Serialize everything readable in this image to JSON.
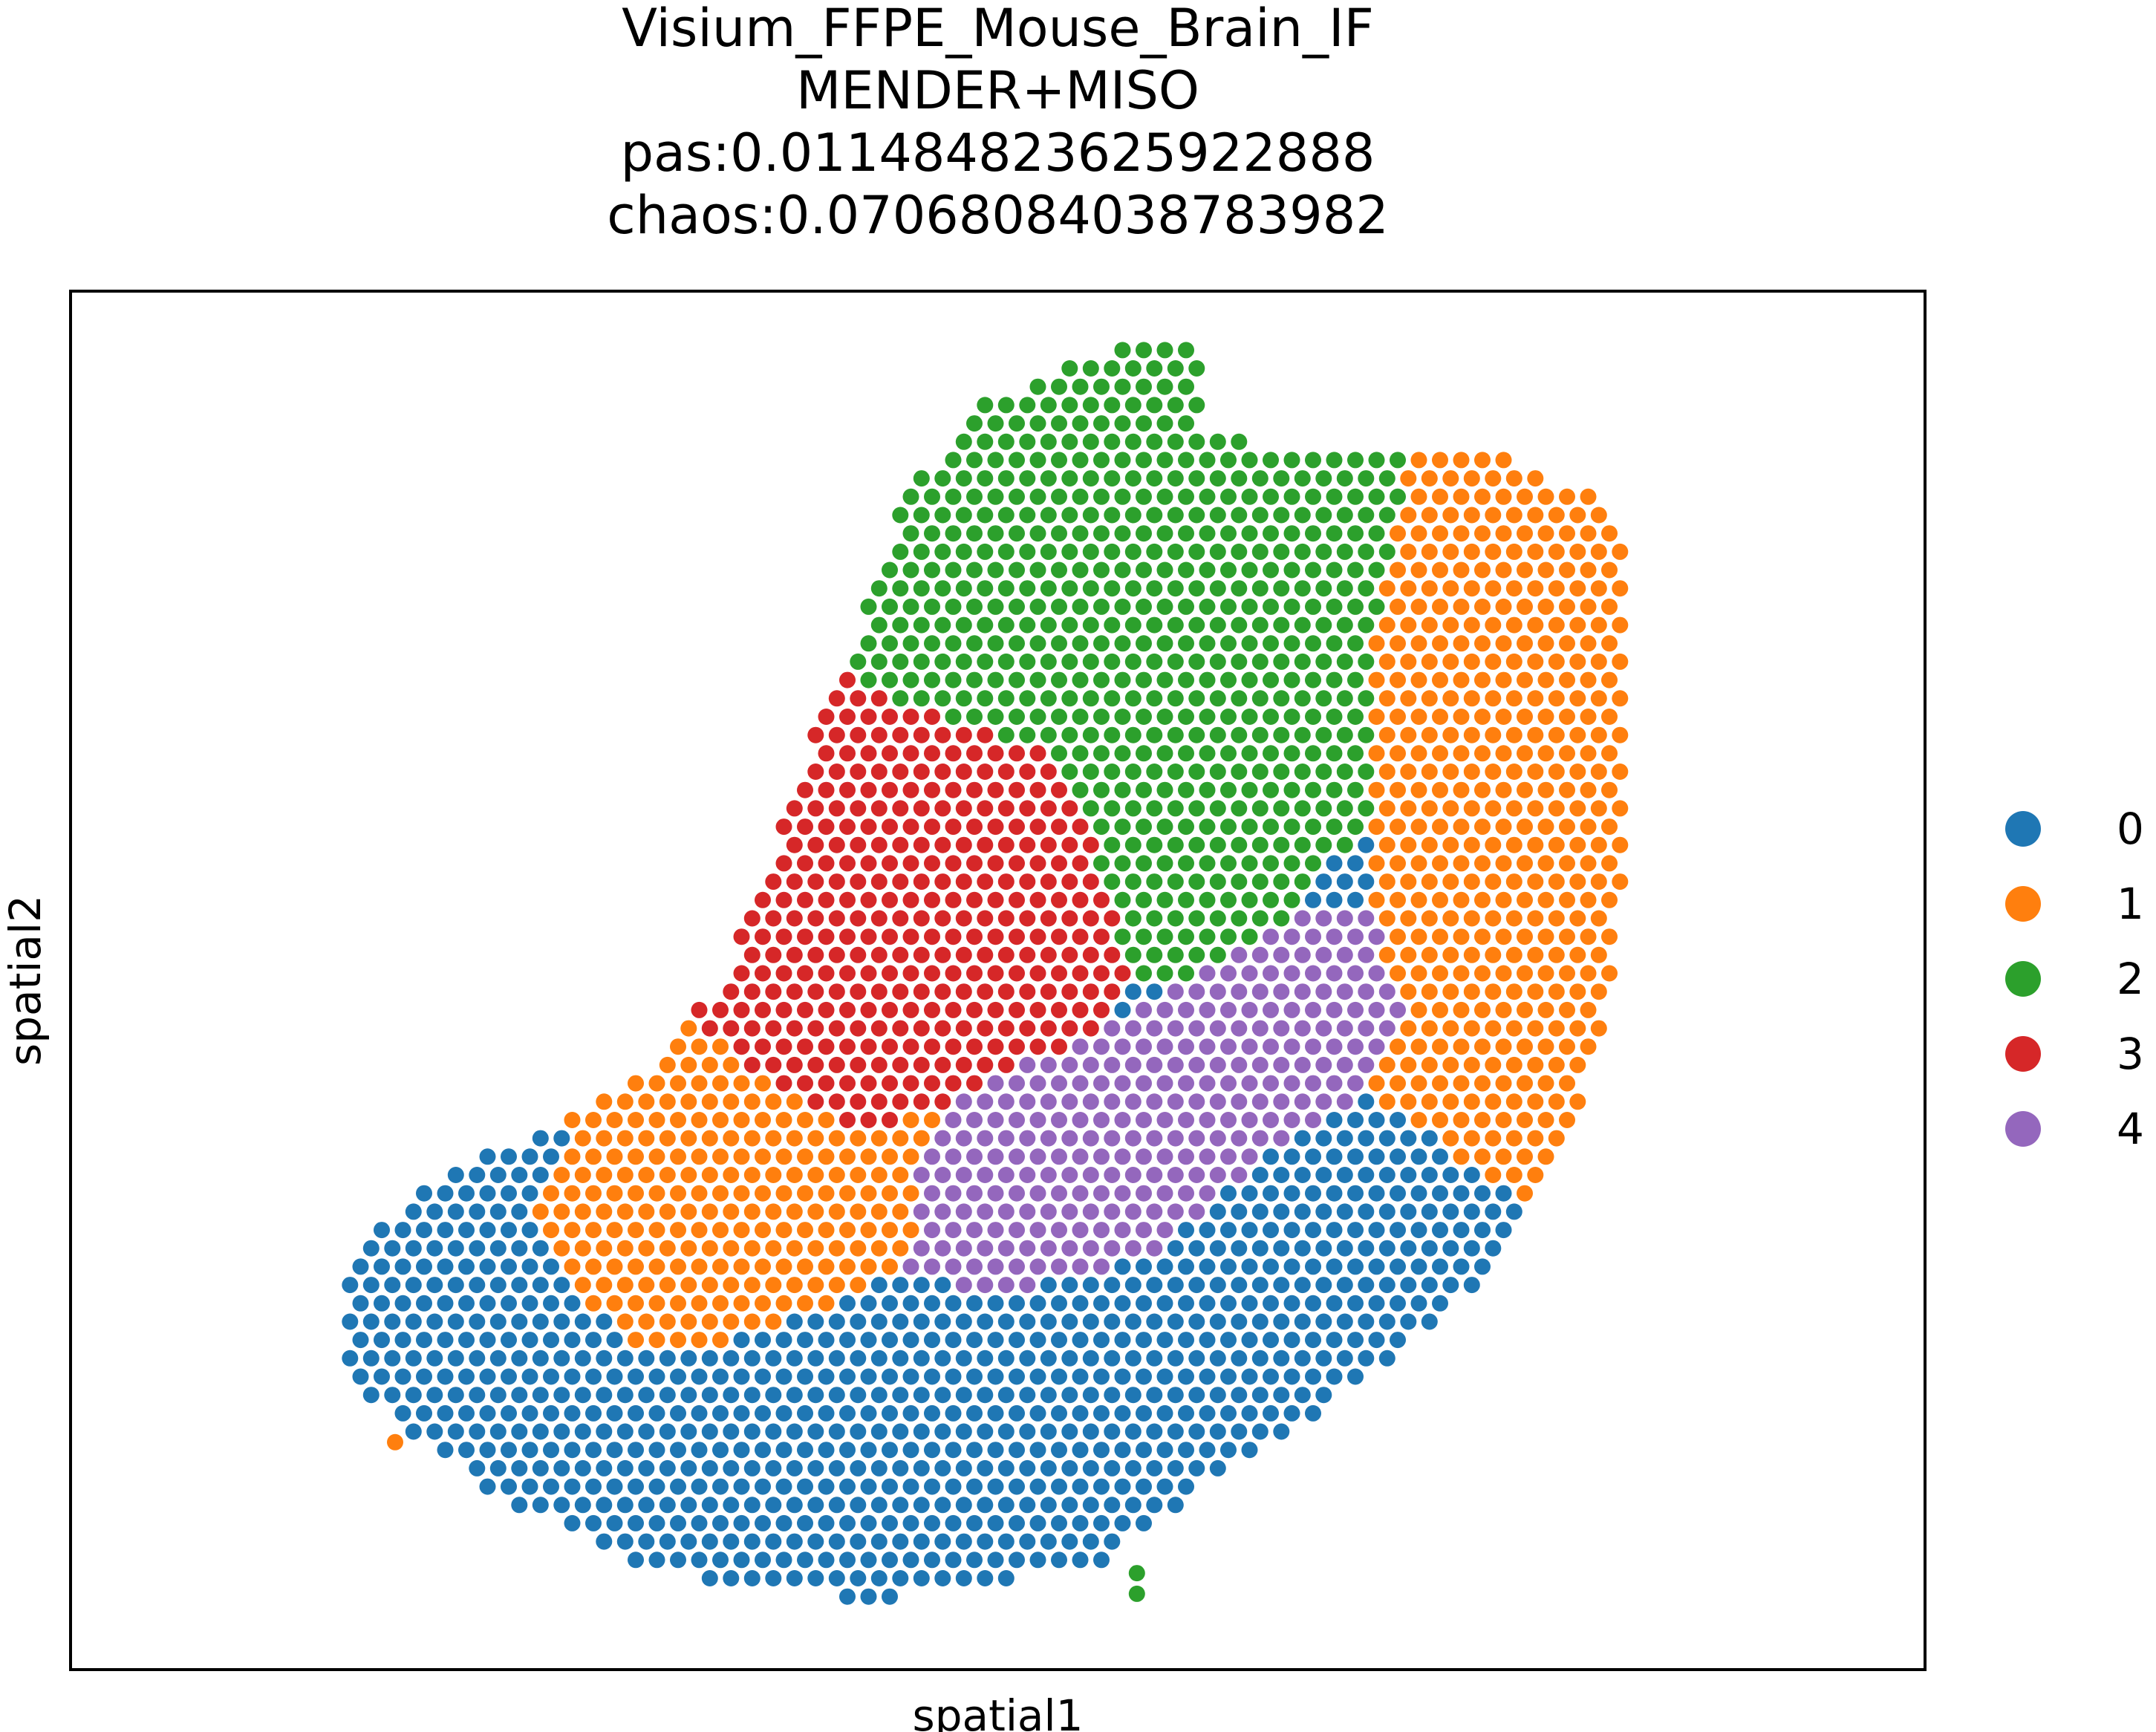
{
  "chart_data": {
    "type": "scatter",
    "title": "Visium_FFPE_Mouse_Brain_IF\nMENDER+MISO\npas:0.011484823625922888\nchaos:0.07068084038783982",
    "xlabel": "spatial1",
    "ylabel": "spatial2",
    "grid": false,
    "ticks": "none",
    "legend": {
      "placement": "right",
      "entries": [
        "0",
        "1",
        "2",
        "3",
        "4"
      ]
    },
    "categories": [
      "0",
      "1",
      "2",
      "3",
      "4"
    ],
    "colors": [
      "#1f77b4",
      "#ff7f0e",
      "#2ca02c",
      "#d62728",
      "#9467bd"
    ],
    "unit_note": "hex-grid spot field with five region clusters; regions encoded as approximate polygons in axis data units (x right, y down, image-oriented)",
    "xlim": [
      0,
      100
    ],
    "ylim": [
      0,
      100
    ],
    "regions": {
      "outline": [
        [
          57,
          4
        ],
        [
          59,
          3
        ],
        [
          61,
          5
        ],
        [
          61,
          10
        ],
        [
          67,
          12
        ],
        [
          72,
          11
        ],
        [
          76,
          11
        ],
        [
          82,
          15
        ],
        [
          84,
          20
        ],
        [
          84,
          40
        ],
        [
          83,
          52
        ],
        [
          81,
          60
        ],
        [
          79,
          66
        ],
        [
          76,
          72
        ],
        [
          70,
          79
        ],
        [
          64,
          84
        ],
        [
          60,
          88
        ],
        [
          56,
          92
        ],
        [
          49,
          94
        ],
        [
          43,
          95
        ],
        [
          36,
          94
        ],
        [
          30,
          92
        ],
        [
          24,
          88
        ],
        [
          18,
          83
        ],
        [
          15,
          79
        ],
        [
          15,
          70
        ],
        [
          20,
          64
        ],
        [
          27,
          60
        ],
        [
          31,
          57
        ],
        [
          35,
          50
        ],
        [
          37,
          44
        ],
        [
          39,
          36
        ],
        [
          42,
          26
        ],
        [
          45,
          15
        ],
        [
          49,
          8
        ],
        [
          53,
          6
        ]
      ],
      "green": [
        [
          57,
          4
        ],
        [
          59,
          3
        ],
        [
          61,
          5
        ],
        [
          61,
          10
        ],
        [
          67,
          12
        ],
        [
          72,
          11
        ],
        [
          72,
          14
        ],
        [
          71,
          20
        ],
        [
          70,
          28
        ],
        [
          70,
          38
        ],
        [
          66,
          45
        ],
        [
          60,
          50
        ],
        [
          57,
          50
        ],
        [
          56,
          43
        ],
        [
          54,
          37
        ],
        [
          52,
          33
        ],
        [
          47,
          31
        ],
        [
          40,
          27
        ],
        [
          42,
          20
        ],
        [
          45,
          15
        ],
        [
          49,
          8
        ],
        [
          53,
          6
        ]
      ],
      "orange": [
        [
          72,
          11
        ],
        [
          76,
          11
        ],
        [
          82,
          15
        ],
        [
          84,
          20
        ],
        [
          84,
          40
        ],
        [
          83,
          52
        ],
        [
          81,
          60
        ],
        [
          79,
          66
        ],
        [
          74,
          62
        ],
        [
          70,
          58
        ],
        [
          72,
          52
        ],
        [
          70,
          45
        ],
        [
          70,
          38
        ],
        [
          70,
          28
        ],
        [
          71,
          20
        ]
      ],
      "red": [
        [
          40,
          27
        ],
        [
          47,
          31
        ],
        [
          52,
          33
        ],
        [
          54,
          37
        ],
        [
          56,
          43
        ],
        [
          57,
          50
        ],
        [
          55,
          54
        ],
        [
          47,
          59
        ],
        [
          43,
          61
        ],
        [
          38,
          58
        ],
        [
          34,
          53
        ],
        [
          31,
          53
        ],
        [
          34,
          48
        ],
        [
          36,
          42
        ],
        [
          37,
          36
        ],
        [
          39,
          30
        ]
      ],
      "purple": [
        [
          70,
          45
        ],
        [
          72,
          52
        ],
        [
          70,
          58
        ],
        [
          64,
          63
        ],
        [
          58,
          70
        ],
        [
          50,
          73
        ],
        [
          45,
          71
        ],
        [
          46,
          62
        ],
        [
          47,
          59
        ],
        [
          55,
          54
        ],
        [
          60,
          50
        ],
        [
          66,
          45
        ]
      ],
      "orange2": [
        [
          31,
          53
        ],
        [
          34,
          53
        ],
        [
          38,
          58
        ],
        [
          43,
          61
        ],
        [
          47,
          59
        ],
        [
          46,
          62
        ],
        [
          45,
          71
        ],
        [
          38,
          75
        ],
        [
          34,
          77
        ],
        [
          30,
          76
        ],
        [
          26,
          71
        ],
        [
          25,
          66
        ],
        [
          27,
          60
        ]
      ],
      "blue": [
        [
          15,
          70
        ],
        [
          20,
          64
        ],
        [
          25,
          66
        ],
        [
          26,
          71
        ],
        [
          30,
          76
        ],
        [
          34,
          77
        ],
        [
          38,
          75
        ],
        [
          45,
          71
        ],
        [
          50,
          73
        ],
        [
          58,
          70
        ],
        [
          64,
          63
        ],
        [
          70,
          58
        ],
        [
          74,
          62
        ],
        [
          79,
          66
        ],
        [
          76,
          72
        ],
        [
          70,
          79
        ],
        [
          64,
          84
        ],
        [
          60,
          88
        ],
        [
          56,
          92
        ],
        [
          49,
          94
        ],
        [
          43,
          95
        ],
        [
          36,
          94
        ],
        [
          30,
          92
        ],
        [
          24,
          88
        ],
        [
          18,
          83
        ],
        [
          15,
          79
        ]
      ]
    },
    "outliers": [
      {
        "x": 17.5,
        "y": 83.5,
        "category": "1"
      },
      {
        "x": 57.5,
        "y": 93,
        "category": "2"
      },
      {
        "x": 57.5,
        "y": 94.5,
        "category": "2"
      }
    ]
  }
}
